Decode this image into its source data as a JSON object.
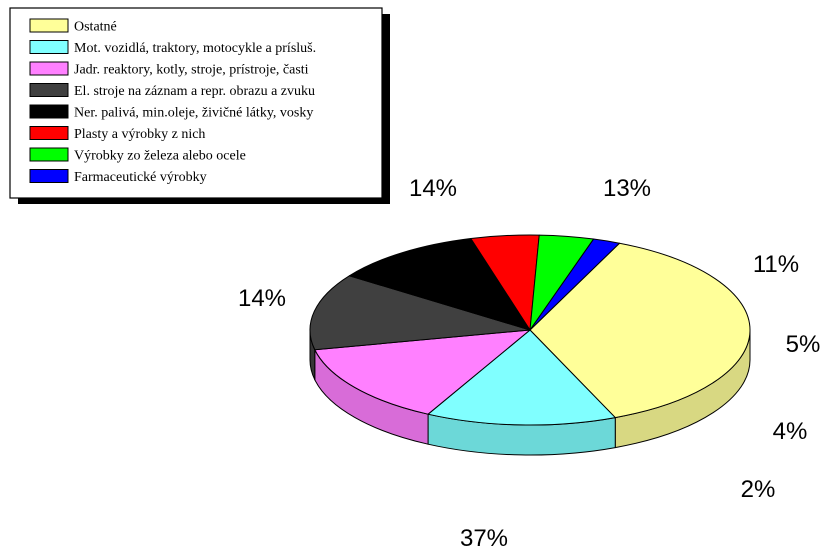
{
  "chart_data": {
    "type": "pie",
    "style": "3d",
    "legend_position": "top-left",
    "categories": [
      "Ostatné",
      "Mot. vozidlá, traktory, motocykle a prísluš.",
      "Jadr. reaktory, kotly, stroje, prístroje, časti",
      "El. stroje na záznam a repr. obrazu a zvuku",
      "Ner. palivá, min.oleje, živičné látky, vosky",
      "Plasty a výrobky z nich",
      "Výrobky zo železa alebo ocele",
      "Farmaceutické výrobky"
    ],
    "values": [
      37,
      14,
      14,
      13,
      11,
      5,
      4,
      2
    ],
    "labels": [
      "37%",
      "14%",
      "14%",
      "13%",
      "11%",
      "5%",
      "4%",
      "2%"
    ],
    "colors": [
      "#FFFF99",
      "#80FFFF",
      "#FF80FF",
      "#404040",
      "#000000",
      "#FF0000",
      "#00FF00",
      "#0000FF"
    ],
    "side_colors": [
      "#D8D882",
      "#6CD8D8",
      "#D86CD8",
      "#363636",
      "#000000",
      "#D80000",
      "#00D800",
      "#0000D8"
    ]
  }
}
